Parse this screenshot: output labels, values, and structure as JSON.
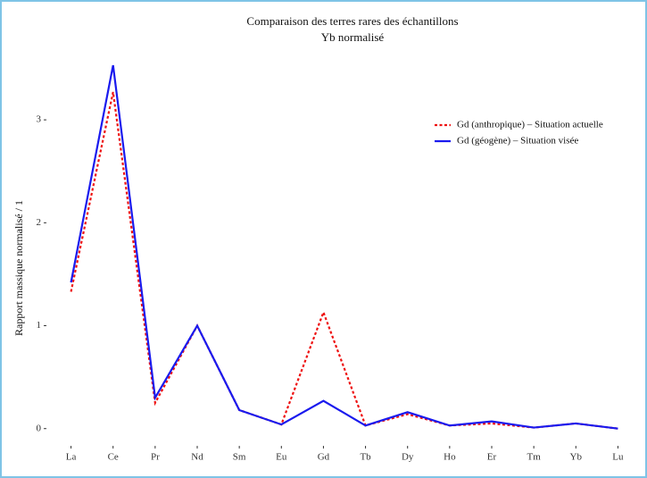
{
  "chart_data": {
    "type": "line",
    "title": "Comparaison des terres rares des échantillons",
    "subtitle": "Yb normalisé",
    "y_label": "Rapport massique normalisé / 1",
    "categories": [
      "La",
      "Ce",
      "Pr",
      "Nd",
      "Sm",
      "Eu",
      "Gd",
      "Tb",
      "Dy",
      "Ho",
      "Er",
      "Tm",
      "Yb",
      "Lu"
    ],
    "series": [
      {
        "name": "Gd (anthropique) – Situation actuelle",
        "color": "#ee1111",
        "dash": true,
        "values": [
          1.33,
          3.27,
          0.25,
          1.0,
          0.18,
          0.04,
          1.13,
          0.03,
          0.14,
          0.03,
          0.05,
          0.01,
          0.05,
          0.0
        ]
      },
      {
        "name": "Gd (géogène) – Situation visée",
        "color": "#1a1aee",
        "dash": false,
        "values": [
          1.42,
          3.53,
          0.3,
          1.0,
          0.18,
          0.04,
          0.27,
          0.03,
          0.16,
          0.03,
          0.07,
          0.01,
          0.05,
          0.0
        ]
      }
    ],
    "ylim": [
      -0.15,
      3.6
    ],
    "yticks": [
      0,
      1,
      2,
      3
    ],
    "legend": "top-right",
    "grid": false
  }
}
